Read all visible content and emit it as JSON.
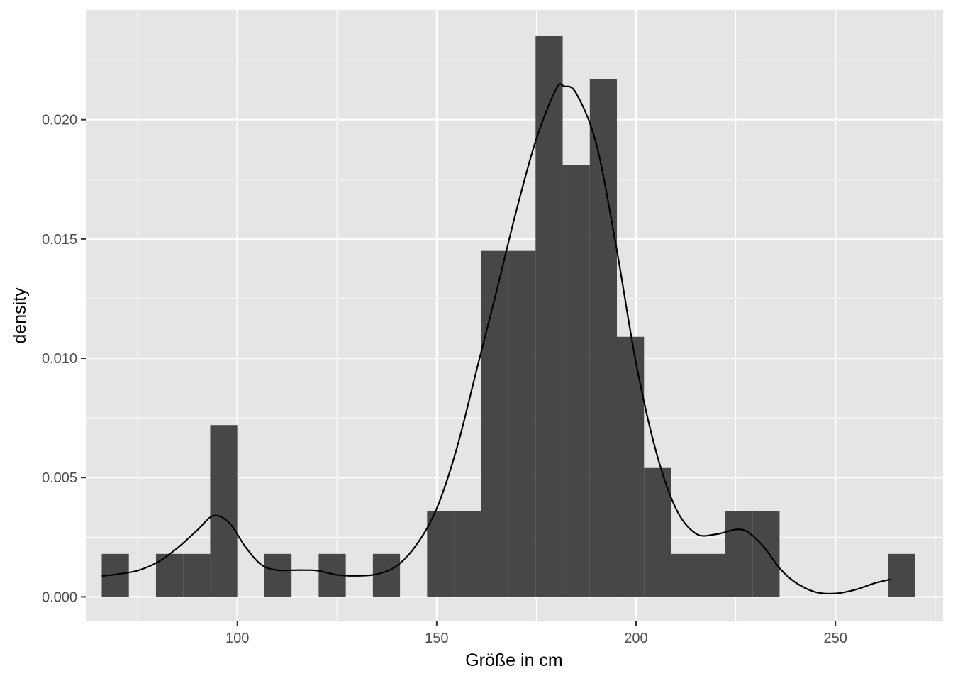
{
  "chart_data": {
    "type": "histogram",
    "title": "",
    "xlabel": "Größe in cm",
    "ylabel": "density",
    "xlim": [
      62,
      277
    ],
    "ylim": [
      -0.001,
      0.0246
    ],
    "grid": true,
    "legend": "none",
    "colors": {
      "panel": "#e5e5e5",
      "grid": "#ffffff",
      "bar": "#474747",
      "line": "#000000",
      "tick_text": "#4d4d4d"
    },
    "x_ticks": [
      {
        "value": 100,
        "label": "100"
      },
      {
        "value": 150,
        "label": "150"
      },
      {
        "value": 200,
        "label": "200"
      },
      {
        "value": 250,
        "label": "250"
      }
    ],
    "y_ticks": [
      {
        "value": 0.0,
        "label": "0.000"
      },
      {
        "value": 0.005,
        "label": "0.005"
      },
      {
        "value": 0.01,
        "label": "0.010"
      },
      {
        "value": 0.015,
        "label": "0.015"
      },
      {
        "value": 0.02,
        "label": "0.020"
      }
    ],
    "bins": [
      {
        "x0": 66.0,
        "x1": 72.8,
        "density": 0.0018
      },
      {
        "x0": 72.8,
        "x1": 79.6,
        "density": 0.0
      },
      {
        "x0": 79.6,
        "x1": 86.4,
        "density": 0.0018
      },
      {
        "x0": 86.4,
        "x1": 93.2,
        "density": 0.0018
      },
      {
        "x0": 93.2,
        "x1": 100.0,
        "density": 0.0072
      },
      {
        "x0": 100.0,
        "x1": 106.8,
        "density": 0.0
      },
      {
        "x0": 106.8,
        "x1": 113.6,
        "density": 0.0018
      },
      {
        "x0": 113.6,
        "x1": 120.4,
        "density": 0.0
      },
      {
        "x0": 120.4,
        "x1": 127.2,
        "density": 0.0018
      },
      {
        "x0": 127.2,
        "x1": 134.0,
        "density": 0.0
      },
      {
        "x0": 134.0,
        "x1": 140.8,
        "density": 0.0018
      },
      {
        "x0": 140.8,
        "x1": 147.6,
        "density": 0.0
      },
      {
        "x0": 147.6,
        "x1": 154.4,
        "density": 0.0036
      },
      {
        "x0": 154.4,
        "x1": 161.2,
        "density": 0.0036
      },
      {
        "x0": 161.2,
        "x1": 168.0,
        "density": 0.0145
      },
      {
        "x0": 168.0,
        "x1": 174.8,
        "density": 0.0145
      },
      {
        "x0": 174.8,
        "x1": 181.6,
        "density": 0.0235
      },
      {
        "x0": 181.6,
        "x1": 188.4,
        "density": 0.0181
      },
      {
        "x0": 188.4,
        "x1": 195.2,
        "density": 0.0217
      },
      {
        "x0": 195.2,
        "x1": 202.0,
        "density": 0.0109
      },
      {
        "x0": 202.0,
        "x1": 208.8,
        "density": 0.0054
      },
      {
        "x0": 208.8,
        "x1": 215.6,
        "density": 0.0018
      },
      {
        "x0": 215.6,
        "x1": 222.4,
        "density": 0.0018
      },
      {
        "x0": 222.4,
        "x1": 229.2,
        "density": 0.0036
      },
      {
        "x0": 229.2,
        "x1": 236.0,
        "density": 0.0036
      },
      {
        "x0": 236.0,
        "x1": 242.8,
        "density": 0.0
      },
      {
        "x0": 242.8,
        "x1": 249.6,
        "density": 0.0
      },
      {
        "x0": 249.6,
        "x1": 256.4,
        "density": 0.0
      },
      {
        "x0": 256.4,
        "x1": 263.2,
        "density": 0.0
      },
      {
        "x0": 263.2,
        "x1": 270.0,
        "density": 0.0018
      }
    ],
    "density_curve": {
      "x": [
        66,
        70,
        75,
        80,
        85,
        90,
        94,
        98,
        102,
        106,
        110,
        115,
        120,
        125,
        130,
        135,
        140,
        145,
        150,
        155,
        160,
        165,
        170,
        175,
        180,
        182,
        185,
        190,
        195,
        200,
        205,
        210,
        215,
        220,
        225,
        228,
        232,
        236,
        240,
        245,
        250,
        255,
        260,
        264
      ],
      "y": [
        0.00087,
        0.00095,
        0.0011,
        0.00145,
        0.00205,
        0.0028,
        0.0034,
        0.0031,
        0.0021,
        0.00135,
        0.00112,
        0.00112,
        0.0011,
        0.00092,
        0.00088,
        0.00095,
        0.0013,
        0.0022,
        0.0037,
        0.0062,
        0.0095,
        0.0128,
        0.0162,
        0.0192,
        0.0213,
        0.0214,
        0.0211,
        0.019,
        0.0147,
        0.0098,
        0.0061,
        0.0037,
        0.00265,
        0.00262,
        0.00282,
        0.00272,
        0.0021,
        0.0012,
        0.0006,
        0.0002,
        0.00014,
        0.0003,
        0.00058,
        0.00074
      ]
    }
  }
}
